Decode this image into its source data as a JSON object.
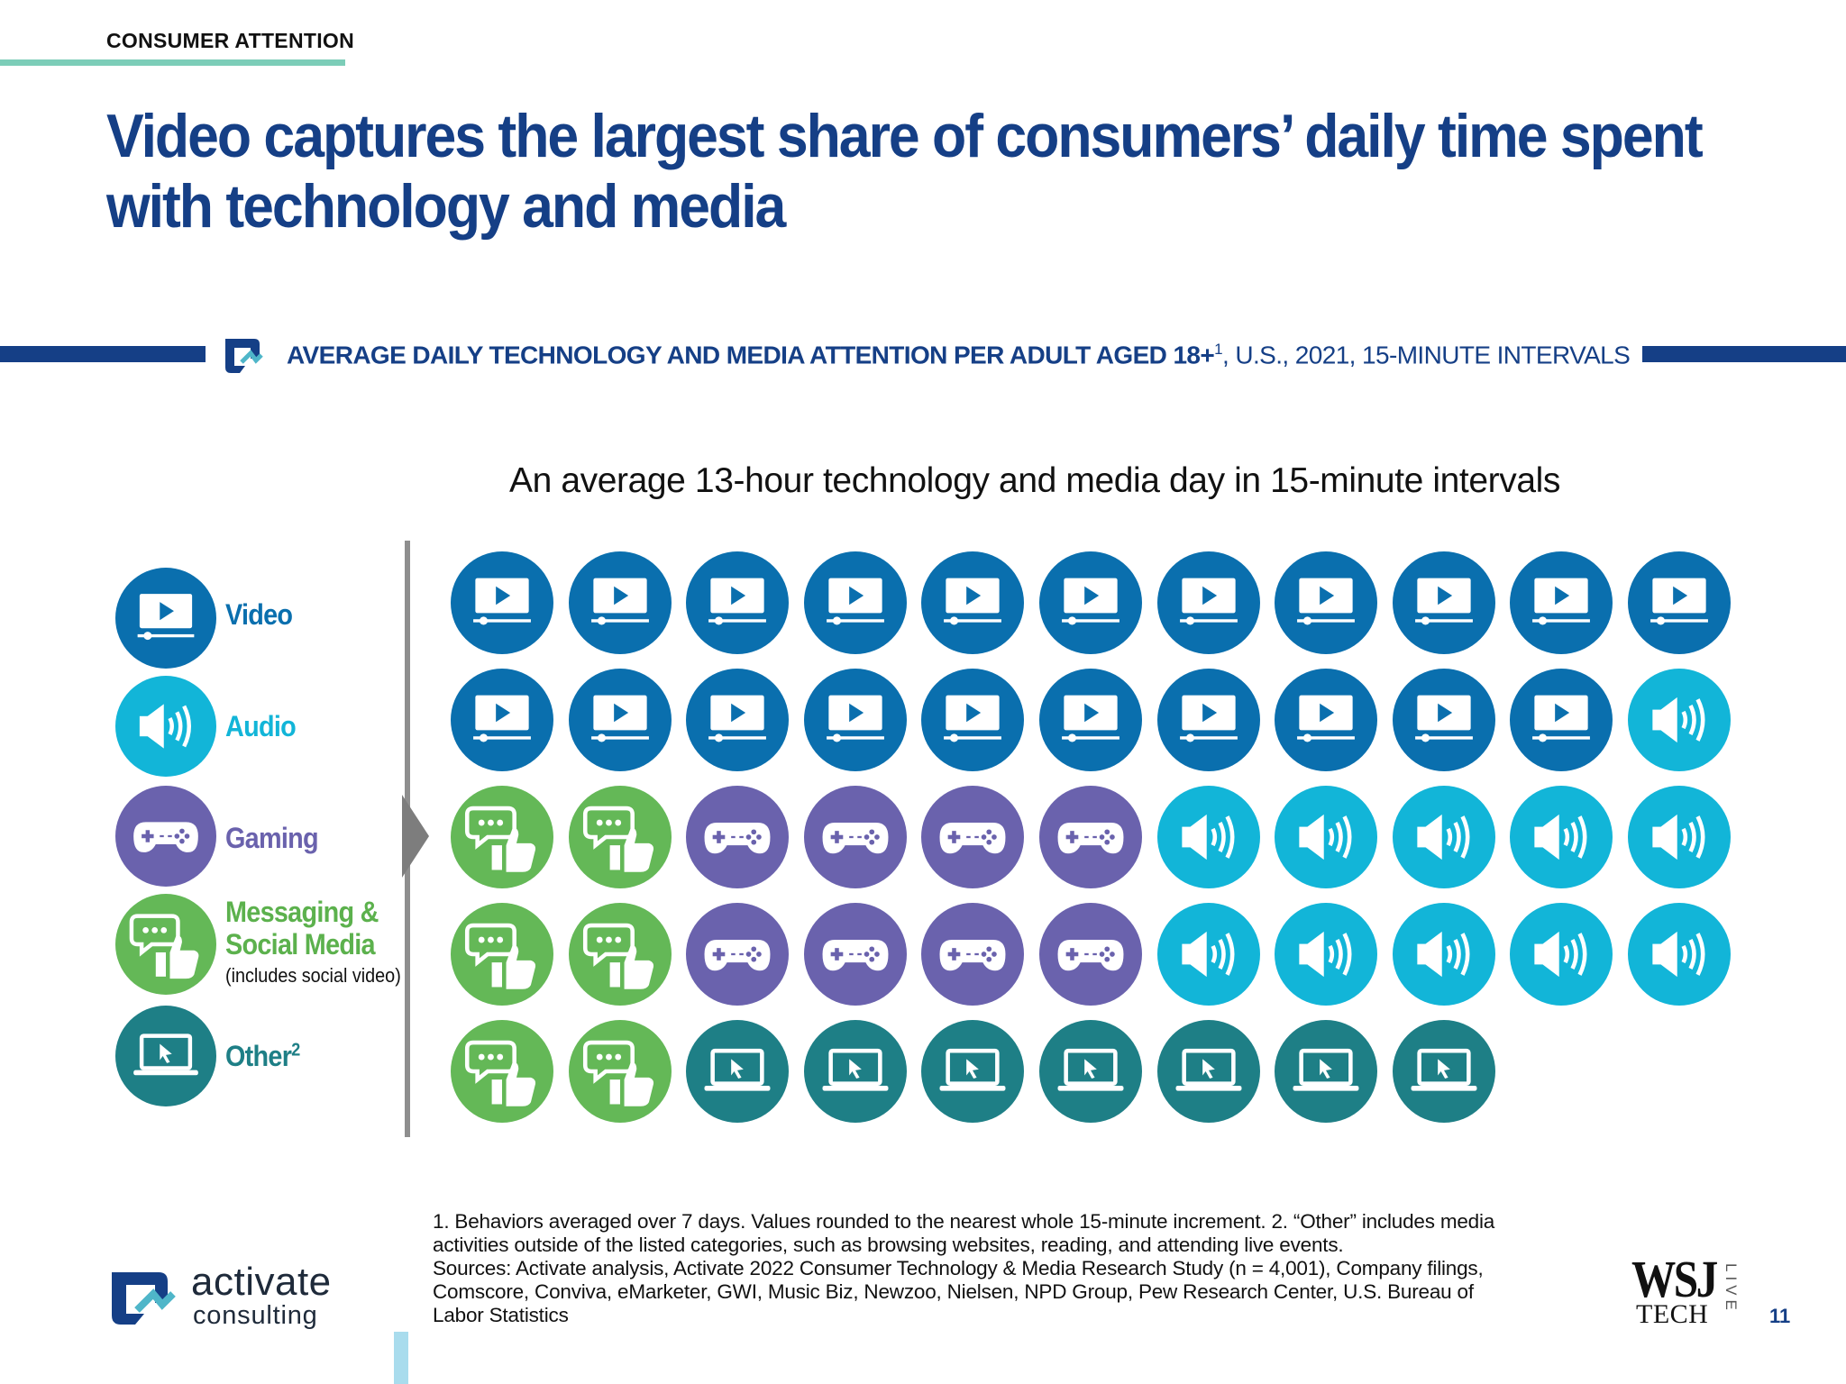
{
  "header": {
    "kicker": "CONSUMER ATTENTION",
    "title_line1": "Video captures the largest share of consumers’ daily time spent",
    "title_line2": "with technology and media"
  },
  "subtitle": {
    "bold": "AVERAGE DAILY TECHNOLOGY AND MEDIA ATTENTION PER ADULT AGED 18+",
    "sup": "1",
    "rest": ", U.S., 2021, 15-MINUTE INTERVALS"
  },
  "chart_data": {
    "type": "table",
    "title": "An average 13-hour technology and media day in 15-minute intervals",
    "unit": "15-minute intervals",
    "grid": {
      "rows": 5,
      "columns": 11
    },
    "categories": [
      "Video",
      "Audio",
      "Gaming",
      "Messaging & Social Media",
      "Other"
    ],
    "values": [
      21,
      11,
      8,
      6,
      7
    ],
    "legend_placement": "left",
    "cells": [
      [
        "video",
        "video",
        "video",
        "video",
        "video",
        "video",
        "video",
        "video",
        "video",
        "video",
        "video"
      ],
      [
        "video",
        "video",
        "video",
        "video",
        "video",
        "video",
        "video",
        "video",
        "video",
        "video",
        "audio"
      ],
      [
        "social",
        "social",
        "gaming",
        "gaming",
        "gaming",
        "gaming",
        "audio",
        "audio",
        "audio",
        "audio",
        "audio"
      ],
      [
        "social",
        "social",
        "gaming",
        "gaming",
        "gaming",
        "gaming",
        "audio",
        "audio",
        "audio",
        "audio",
        "audio"
      ],
      [
        "social",
        "social",
        "other",
        "other",
        "other",
        "other",
        "other",
        "other",
        "other"
      ]
    ]
  },
  "legend": [
    {
      "key": "video",
      "label": "Video",
      "color": "#0a6fae",
      "icon": "video-player-icon"
    },
    {
      "key": "audio",
      "label": "Audio",
      "color": "#12b5d8",
      "icon": "speaker-icon"
    },
    {
      "key": "gaming",
      "label": "Gaming",
      "color": "#6a62ad",
      "icon": "gamepad-icon"
    },
    {
      "key": "social",
      "label_line1": "Messaging &",
      "label_line2": "Social Media",
      "note": "(includes social video)",
      "color": "#64b857",
      "text_color": "#5cb14d",
      "icon": "chat-thumbs-up-icon"
    },
    {
      "key": "other",
      "label": "Other",
      "sup": "2",
      "color": "#1e7f86",
      "icon": "laptop-cursor-icon"
    }
  ],
  "footnotes": {
    "line1": "1. Behaviors averaged over 7 days. Values rounded to the nearest whole 15-minute increment.  2. “Other” includes media",
    "line2": "activities outside of the listed categories, such as browsing websites, reading, and attending live events.",
    "line3": "Sources: Activate analysis, Activate 2022 Consumer Technology & Media Research Study (n = 4,001), Company filings,",
    "line4": "Comscore, Conviva, eMarketer, GWI, Music Biz, Newzoo, Nielsen, NPD Group, Pew Research Center, U.S. Bureau of",
    "line5": "Labor Statistics"
  },
  "brand": {
    "name": "activate",
    "sub": "consulting",
    "accent": "#153f86"
  },
  "partner": {
    "wsj": "WSJ",
    "tech": "TECH",
    "live": "LIVE"
  },
  "page_number": "11"
}
